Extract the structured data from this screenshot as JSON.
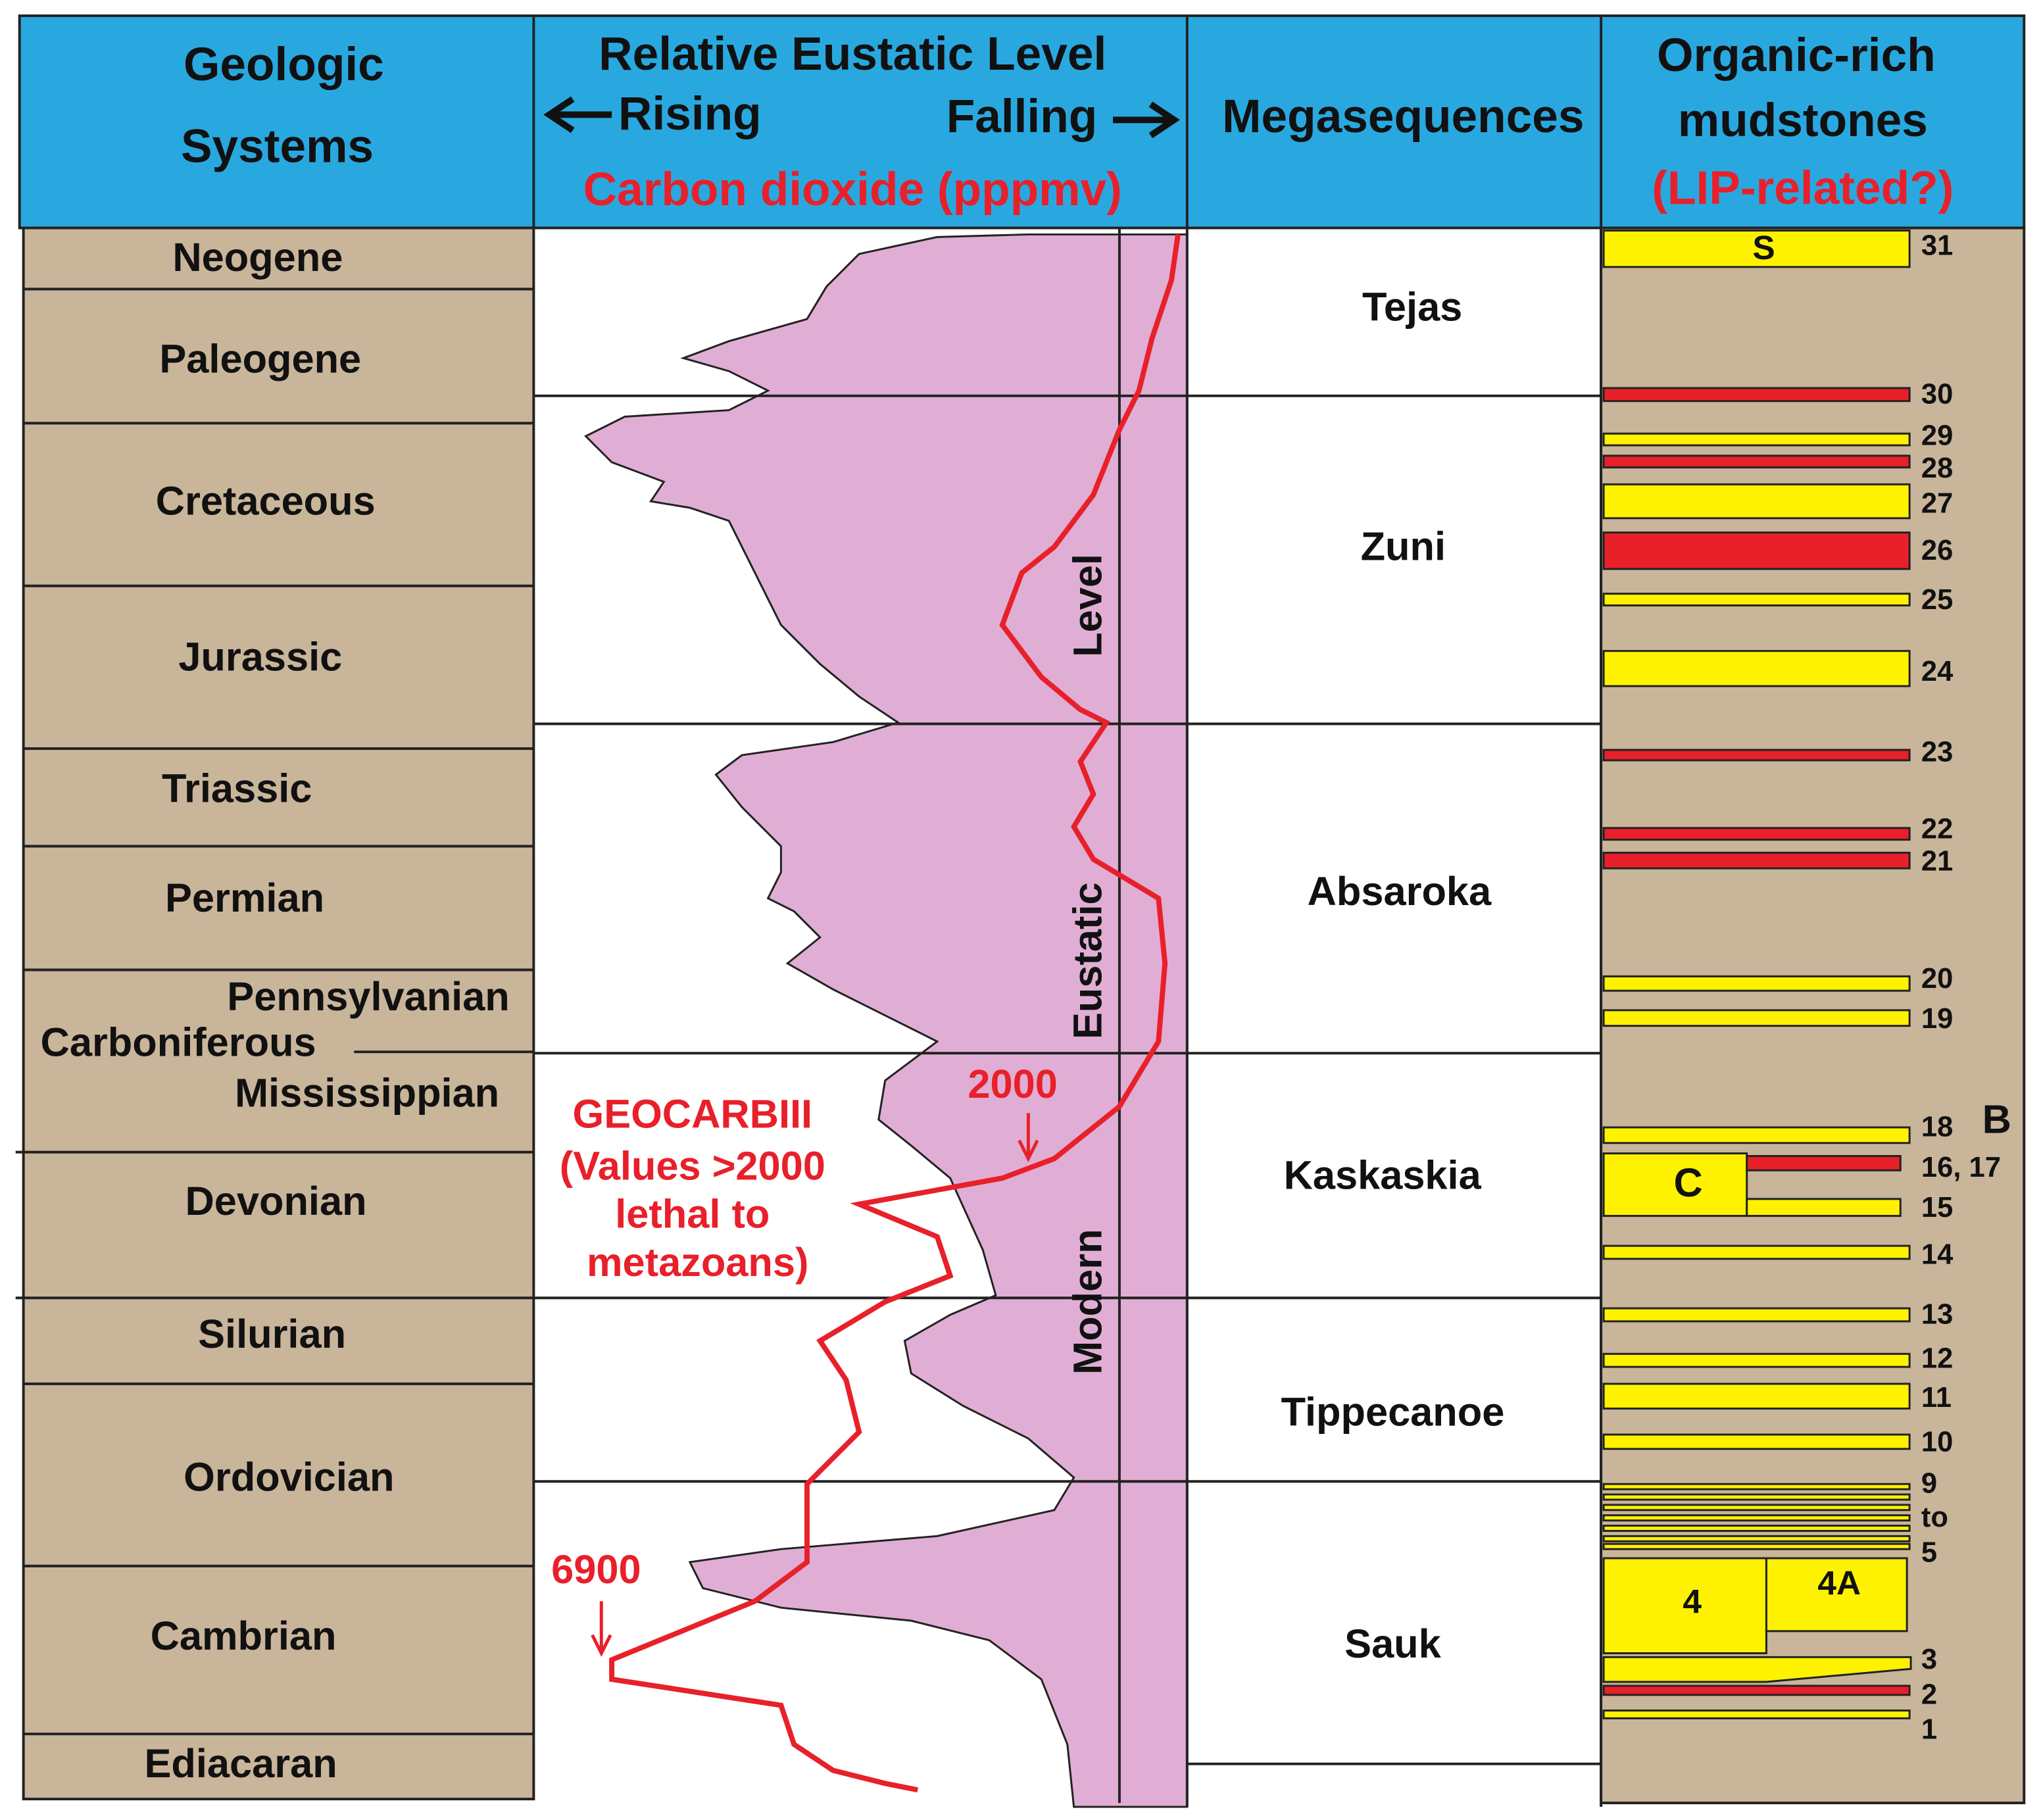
{
  "header": {
    "geologic_systems": [
      "Geologic",
      "Systems"
    ],
    "eustatic_title": "Relative Eustatic Level",
    "rising": "Rising",
    "falling": "Falling",
    "co2": "Carbon dioxide (pppmv)",
    "megasequences": "Megasequences",
    "mudstones": [
      "Organic-rich",
      "mudstones",
      "(LIP-related?)"
    ]
  },
  "systems": [
    "Neogene",
    "Paleogene",
    "Cretaceous",
    "Jurassic",
    "Triassic",
    "Permian",
    "Pennsylvanian",
    "Carboniferous",
    "Mississippian",
    "Devonian",
    "Silurian",
    "Ordovician",
    "Cambrian",
    "Ediacaran"
  ],
  "curve_labels": {
    "level": "Level",
    "eustatic": "Eustatic",
    "modern": "Modern",
    "co2_2000": "2000",
    "co2_6900": "6900",
    "geocarb": [
      "GEOCARBIII",
      "(Values >2000",
      "lethal to",
      "metazoans)"
    ]
  },
  "megasequences": [
    "Tejas",
    "Zuni",
    "Absaroka",
    "Kaskaskia",
    "Tippecanoe",
    "Sauk"
  ],
  "mudstones": {
    "numbers": [
      "31",
      "30",
      "29",
      "28",
      "27",
      "26",
      "25",
      "24",
      "23",
      "22",
      "21",
      "20",
      "19",
      "18",
      "16, 17",
      "15",
      "14",
      "13",
      "12",
      "11",
      "10",
      "9",
      "to",
      "5",
      "3",
      "2",
      "1"
    ],
    "box_labels": [
      "S",
      "C",
      "4",
      "4A"
    ],
    "column_label": "B"
  }
}
